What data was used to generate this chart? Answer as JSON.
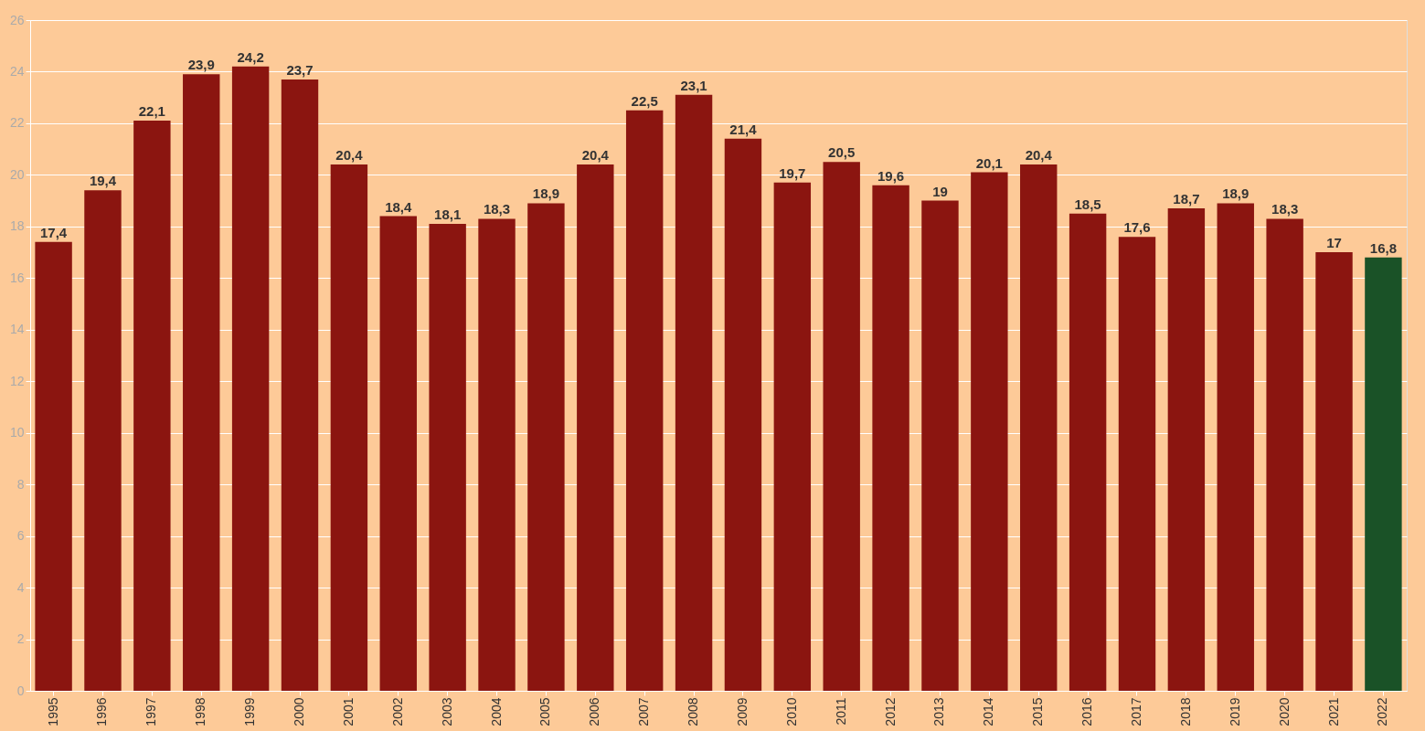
{
  "chart_data": {
    "type": "bar",
    "categories": [
      "1995",
      "1996",
      "1997",
      "1998",
      "1999",
      "2000",
      "2001",
      "2002",
      "2003",
      "2004",
      "2005",
      "2006",
      "2007",
      "2008",
      "2009",
      "2010",
      "2011",
      "2012",
      "2013",
      "2014",
      "2015",
      "2016",
      "2017",
      "2018",
      "2019",
      "2020",
      "2021",
      "2022"
    ],
    "values": [
      17.4,
      19.4,
      22.1,
      23.9,
      24.2,
      23.7,
      20.4,
      18.4,
      18.1,
      18.3,
      18.9,
      20.4,
      22.5,
      23.1,
      21.4,
      19.7,
      20.5,
      19.6,
      19,
      20.1,
      20.4,
      18.5,
      17.6,
      18.7,
      18.9,
      18.3,
      17,
      16.8
    ],
    "value_labels": [
      "17,4",
      "19,4",
      "22,1",
      "23,9",
      "24,2",
      "23,7",
      "20,4",
      "18,4",
      "18,1",
      "18,3",
      "18,9",
      "20,4",
      "22,5",
      "23,1",
      "21,4",
      "19,7",
      "20,5",
      "19,6",
      "19",
      "20,1",
      "20,4",
      "18,5",
      "17,6",
      "18,7",
      "18,9",
      "18,3",
      "17",
      "16,8"
    ],
    "colors": [
      "#8b1510",
      "#8b1510",
      "#8b1510",
      "#8b1510",
      "#8b1510",
      "#8b1510",
      "#8b1510",
      "#8b1510",
      "#8b1510",
      "#8b1510",
      "#8b1510",
      "#8b1510",
      "#8b1510",
      "#8b1510",
      "#8b1510",
      "#8b1510",
      "#8b1510",
      "#8b1510",
      "#8b1510",
      "#8b1510",
      "#8b1510",
      "#8b1510",
      "#8b1510",
      "#8b1510",
      "#8b1510",
      "#8b1510",
      "#8b1510",
      "#1a5227"
    ],
    "ylim": [
      0,
      26
    ],
    "yticks": [
      0,
      2,
      4,
      6,
      8,
      10,
      12,
      14,
      16,
      18,
      20,
      22,
      24,
      26
    ],
    "grid": "y"
  }
}
